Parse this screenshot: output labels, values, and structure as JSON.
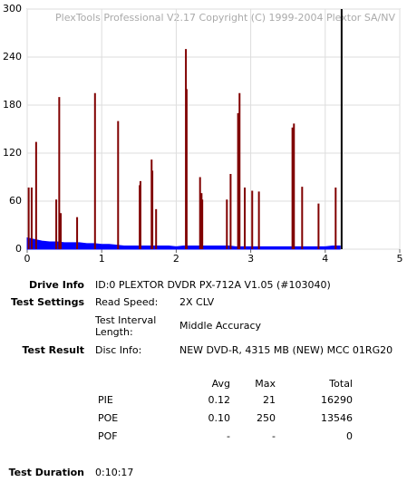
{
  "chart_data": {
    "type": "spike",
    "annotation": "PlexTools Professional V2.17 Copyright (C) 1999-2004 Plextor SA/NV",
    "xlim": [
      0,
      5
    ],
    "xticks": [
      0,
      1,
      2,
      3,
      4,
      5
    ],
    "ylim": [
      0,
      300
    ],
    "yticks": [
      0,
      60,
      120,
      180,
      240,
      300
    ],
    "grid": true,
    "series": [
      {
        "color": "#0000ff",
        "style": "area",
        "x": [
          0,
          0.1,
          0.2,
          0.3,
          0.4,
          0.5,
          0.6,
          0.7,
          0.8,
          0.9,
          1,
          1.1,
          1.2,
          1.3,
          1.4,
          1.5,
          1.6,
          1.7,
          1.8,
          1.9,
          2,
          2.1,
          2.2,
          2.3,
          2.4,
          2.5,
          2.6,
          2.7,
          2.8,
          2.9,
          3,
          3.1,
          3.2,
          3.3,
          3.4,
          3.5,
          3.6,
          3.7,
          3.8,
          3.9,
          4,
          4.1,
          4.2
        ],
        "values": [
          14,
          12,
          10,
          9,
          9,
          8,
          8,
          8,
          7,
          7,
          6,
          6,
          5,
          4,
          4,
          4,
          4,
          4,
          4,
          4,
          3,
          4,
          4,
          4,
          4,
          4,
          4,
          4,
          3,
          3,
          3,
          3,
          3,
          3,
          3,
          3,
          3,
          3,
          3,
          3,
          3,
          4,
          4
        ]
      },
      {
        "color": "#800000",
        "style": "spike",
        "x": [
          0.02,
          0.06,
          0.12,
          0.39,
          0.43,
          0.45,
          0.67,
          0.91,
          1.22,
          1.51,
          1.52,
          1.67,
          1.68,
          1.73,
          2.13,
          2.14,
          2.32,
          2.34,
          2.35,
          2.68,
          2.73,
          2.83,
          2.85,
          2.92,
          3.02,
          3.11,
          3.56,
          3.58,
          3.69,
          3.91,
          4.14
        ],
        "values": [
          77,
          77,
          134,
          62,
          190,
          45,
          40,
          195,
          160,
          80,
          85,
          112,
          98,
          50,
          250,
          200,
          90,
          70,
          62,
          62,
          94,
          170,
          195,
          77,
          73,
          72,
          152,
          157,
          78,
          57,
          77
        ]
      },
      {
        "color": "#000000",
        "style": "spike",
        "x": [
          4.22
        ],
        "values": [
          300
        ]
      }
    ]
  },
  "report": {
    "drive_info": {
      "label": "Drive Info",
      "value": "ID:0 PLEXTOR DVDR PX-712A V1.05 (#103040)"
    },
    "test_settings": {
      "label": "Test Settings",
      "rows": [
        [
          "Read Speed:",
          "2X CLV"
        ],
        [
          "Test Interval Length:",
          "Middle Accuracy"
        ]
      ]
    },
    "test_result": {
      "label": "Test Result",
      "disc_info": [
        "Disc Info:",
        "NEW DVD-R, 4315 MB (NEW) MCC 01RG20"
      ],
      "table": {
        "header": [
          "Avg",
          "Max",
          "Total"
        ],
        "rows": [
          [
            "PIE",
            "0.12",
            "21",
            "16290"
          ],
          [
            "POE",
            "0.10",
            "250",
            "13546"
          ],
          [
            "POF",
            "-",
            "-",
            "0"
          ]
        ]
      }
    },
    "test_duration": {
      "label": "Test Duration",
      "value": "0:10:17"
    }
  }
}
